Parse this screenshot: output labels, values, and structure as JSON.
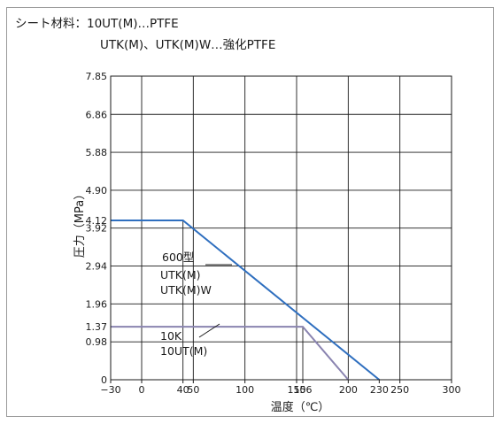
{
  "header": {
    "line1": "シート材料：10UT(M)…PTFE",
    "line2": "UTK(M)、UTK(M)W…強化PTFE"
  },
  "chart_data": {
    "type": "line",
    "xlabel": "温度（℃）",
    "ylabel": "圧力（MPa）",
    "xlim": [
      -30,
      300
    ],
    "ylim": [
      0,
      7.85
    ],
    "x_ticks": [
      {
        "value": -30,
        "label": "−30"
      },
      {
        "value": 0,
        "label": "0"
      },
      {
        "value": 40,
        "label": "40"
      },
      {
        "value": 50,
        "label": "50"
      },
      {
        "value": 100,
        "label": "100"
      },
      {
        "value": 150,
        "label": "150"
      },
      {
        "value": 156,
        "label": "156"
      },
      {
        "value": 200,
        "label": "200"
      },
      {
        "value": 230,
        "label": "230"
      },
      {
        "value": 250,
        "label": "250"
      },
      {
        "value": 300,
        "label": "300"
      }
    ],
    "y_ticks": [
      {
        "value": 0,
        "label": "0"
      },
      {
        "value": 0.98,
        "label": "0.98"
      },
      {
        "value": 1.37,
        "label": "1.37"
      },
      {
        "value": 1.96,
        "label": "1.96"
      },
      {
        "value": 2.94,
        "label": "2.94"
      },
      {
        "value": 3.92,
        "label": "3.92"
      },
      {
        "value": 4.12,
        "label": "4.12"
      },
      {
        "value": 4.9,
        "label": "4.90"
      },
      {
        "value": 5.88,
        "label": "5.88"
      },
      {
        "value": 6.86,
        "label": "6.86"
      },
      {
        "value": 7.85,
        "label": "7.85"
      }
    ],
    "grid_x": [
      0,
      50,
      100,
      150,
      200,
      250
    ],
    "grid_y": [
      0.98,
      1.96,
      2.94,
      3.92,
      4.9,
      5.88,
      6.86
    ],
    "series": [
      {
        "key": "s600",
        "labels": [
          "600型",
          "UTK(M)",
          "UTK(M)W"
        ],
        "color": "#2f6fbf",
        "x": [
          -30,
          40,
          230
        ],
        "y": [
          4.12,
          4.12,
          0
        ]
      },
      {
        "key": "s10k",
        "labels": [
          "10K",
          "10UT(M)"
        ],
        "color": "#8a84b0",
        "x": [
          -30,
          156,
          200
        ],
        "y": [
          1.37,
          1.37,
          0
        ]
      }
    ],
    "ref_lines": [
      {
        "x": 40,
        "y_from": 0,
        "y_to": 4.12
      },
      {
        "x": 156,
        "y_from": 0,
        "y_to": 1.37
      }
    ],
    "grid": true,
    "legend": "inline annotations"
  }
}
